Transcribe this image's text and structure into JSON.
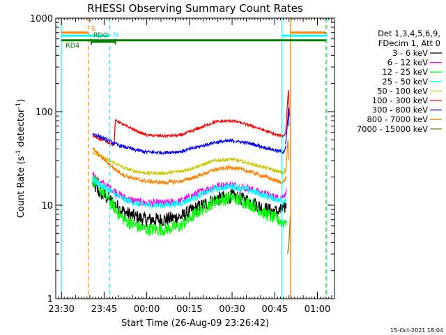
{
  "chart_data": {
    "type": "line",
    "title": "RHESSI Observing Summary Count Rates",
    "xlabel": "Start Time (26-Aug-09 23:26:42)",
    "ylabel_main": "Count Rate (s",
    "ylabel_sup1": "-1",
    "ylabel_mid": " detector",
    "ylabel_sup2": "-1",
    "ylabel_end": ")",
    "yscale": "log",
    "ylim": [
      1,
      1000
    ],
    "xlim_minutes": [
      -2,
      96
    ],
    "x_tick_labels": [
      "23:30",
      "23:45",
      "00:00",
      "00:15",
      "00:30",
      "00:45",
      "01:00"
    ],
    "x_tick_minutes": [
      0,
      15,
      30,
      45,
      60,
      75,
      90
    ],
    "y_tick_labels": [
      "1",
      "10",
      "100",
      "1000"
    ],
    "y_tick_values": [
      1,
      10,
      100,
      1000
    ],
    "legend_header": [
      "Det 1,3,4,5,6,9,",
      "FDecim 1, Att 0"
    ],
    "footer_date": "15-Oct-2021 18:04",
    "flags": [
      {
        "label": "S",
        "color": "#ff8000",
        "value": 700,
        "segments": [
          [
            0,
            9.5
          ],
          [
            80.5,
            93
          ]
        ]
      },
      {
        "label": "N",
        "color": "#00ffff",
        "value": 650,
        "segments": [
          [
            0,
            17
          ],
          [
            77.5,
            93
          ]
        ]
      },
      {
        "label": "RDO",
        "color": "#008000",
        "value": 560,
        "segments": [
          [
            10.5,
            19
          ]
        ]
      },
      {
        "label": "RD4",
        "color": "#008000",
        "value": 580,
        "segments": [
          [
            0,
            93
          ]
        ]
      }
    ],
    "vlines": [
      {
        "minute": 0,
        "color": "#00ffff",
        "dashed": false
      },
      {
        "minute": 9.5,
        "color": "#ff8000",
        "dashed": true
      },
      {
        "minute": 17,
        "color": "#00ffff",
        "dashed": true
      },
      {
        "minute": 77.5,
        "color": "#00ffff",
        "dashed": false
      },
      {
        "minute": 80.5,
        "color": "#ff8000",
        "dashed": false
      },
      {
        "minute": 93,
        "color": "#ff8000",
        "dashed": true
      },
      {
        "minute": 93.3,
        "color": "#00ffff",
        "dashed": true
      }
    ],
    "series": [
      {
        "name": "3 - 6 keV",
        "color": "#000000",
        "noise": 0.22,
        "x": [
          11,
          13,
          16,
          19,
          22,
          26,
          30,
          36,
          42,
          48,
          54,
          60,
          66,
          72,
          76,
          78,
          79
        ],
        "values": [
          17,
          14,
          12,
          10,
          8.5,
          7.5,
          7,
          7,
          7.5,
          9.5,
          11.5,
          12.5,
          11,
          9,
          8.5,
          9,
          10
        ]
      },
      {
        "name": "6 - 12 keV",
        "color": "#ff00ff",
        "noise": 0.12,
        "x": [
          11,
          13,
          16,
          19,
          22,
          26,
          30,
          36,
          42,
          48,
          54,
          60,
          66,
          72,
          76,
          78,
          79
        ],
        "values": [
          22,
          18,
          16,
          14,
          12,
          11,
          10.5,
          10.5,
          11,
          13.5,
          16,
          16.5,
          15,
          13,
          12,
          12.5,
          14
        ]
      },
      {
        "name": "12 - 25 keV",
        "color": "#00ff00",
        "noise": 0.2,
        "x": [
          11,
          13,
          16,
          19,
          22,
          26,
          30,
          36,
          42,
          48,
          54,
          60,
          66,
          72,
          76,
          78,
          79
        ],
        "values": [
          19,
          16,
          12,
          9,
          7,
          6,
          5.5,
          5.5,
          6,
          8.5,
          11,
          12,
          10.5,
          8,
          7,
          6.5,
          7
        ]
      },
      {
        "name": "25 - 50 keV",
        "color": "#00ffff",
        "noise": 0.1,
        "x": [
          11,
          13,
          16,
          19,
          22,
          26,
          30,
          36,
          42,
          48,
          54,
          60,
          66,
          72,
          76,
          78,
          79
        ],
        "values": [
          19,
          17,
          15,
          13,
          11.5,
          10.5,
          10,
          10,
          10.5,
          12.5,
          15,
          16,
          14.5,
          12.5,
          11.5,
          11,
          12
        ]
      },
      {
        "name": "50 - 100 keV",
        "color": "#c8c800",
        "noise": 0.05,
        "x": [
          11,
          13,
          16,
          19,
          22,
          26,
          30,
          36,
          42,
          48,
          54,
          60,
          66,
          72,
          76,
          78,
          79
        ],
        "values": [
          37,
          34,
          31,
          28,
          25,
          23,
          22,
          22,
          23,
          26,
          30,
          31,
          28,
          25,
          23,
          22,
          25
        ]
      },
      {
        "name": "100 - 300 keV",
        "color": "#ff0000",
        "noise": 0.04,
        "x": [
          11,
          13,
          16,
          18.5,
          19,
          22,
          26,
          30,
          36,
          42,
          48,
          54,
          60,
          66,
          72,
          76,
          78,
          79
        ],
        "values": [
          55,
          52,
          48,
          44,
          82,
          72,
          63,
          56,
          55,
          56,
          66,
          78,
          80,
          72,
          62,
          56,
          55,
          60
        ]
      },
      {
        "name": "300 - 800 keV",
        "color": "#0000ff",
        "noise": 0.05,
        "x": [
          11,
          13,
          16,
          19,
          22,
          26,
          30,
          36,
          42,
          48,
          54,
          60,
          66,
          72,
          76,
          78,
          79
        ],
        "values": [
          58,
          55,
          50,
          45,
          42,
          39,
          37,
          36.5,
          37.5,
          42,
          47,
          49,
          46,
          41,
          38,
          37,
          42
        ]
      },
      {
        "name": "800 - 7000 keV",
        "color": "#ff8000",
        "noise": 0.06,
        "x": [
          11,
          13,
          16,
          19,
          22,
          26,
          30,
          36,
          42,
          48,
          54,
          60,
          66,
          72,
          76,
          78,
          79
        ],
        "values": [
          40,
          35,
          29,
          24,
          21,
          19,
          18,
          17.5,
          18,
          20.5,
          24,
          25.5,
          23,
          20,
          18,
          17.5,
          20
        ]
      },
      {
        "name": "7000 - 15000 keV",
        "color": "#808000",
        "noise": 0.0,
        "x": [
          79.5,
          80,
          80.3,
          80.5
        ],
        "values": [
          3,
          4,
          6,
          8
        ]
      }
    ],
    "endspikes": [
      {
        "color": "#ff0000",
        "x": [
          78.8,
          79.2,
          79.5,
          79.8,
          80.0,
          80.2
        ],
        "values": [
          60,
          90,
          130,
          170,
          120,
          90
        ]
      },
      {
        "color": "#0000ff",
        "x": [
          78.8,
          79.2,
          79.5,
          79.8,
          80.0
        ],
        "values": [
          45,
          60,
          80,
          110,
          70
        ]
      },
      {
        "color": "#ff8000",
        "x": [
          78.8,
          79.3,
          79.6,
          80.0
        ],
        "values": [
          22,
          35,
          50,
          30
        ]
      }
    ]
  }
}
